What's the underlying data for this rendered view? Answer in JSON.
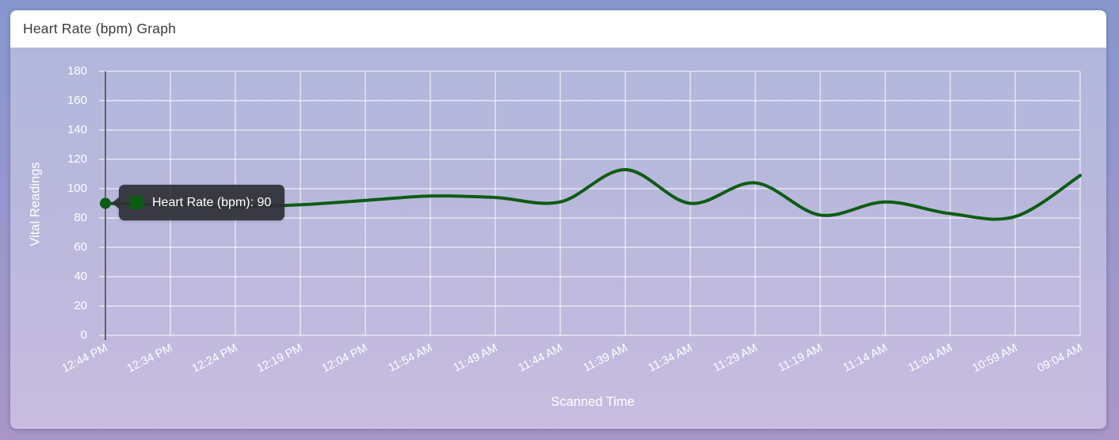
{
  "card": {
    "title": "Heart Rate (bpm) Graph"
  },
  "tooltip": {
    "text": "Heart Rate (bpm): 90"
  },
  "colors": {
    "line": "#0d5c12",
    "point": "#0d5c12",
    "swatch": "#0b5b10",
    "grid": "rgba(255,255,255,0.55)",
    "axis_line": "#636363",
    "tick_text": "#ffffff",
    "page_bg_top": "#8697ce",
    "page_bg_bottom": "#a996c8",
    "chart_bg_top": "#b1b7db",
    "chart_bg_bottom": "#c8bce0",
    "tooltip_bg": "#2f2f37"
  },
  "chart_data": {
    "type": "line",
    "title": "Heart Rate (bpm) Graph",
    "xlabel": "Scanned Time",
    "ylabel": "Vital Readings",
    "ylim": [
      0,
      180
    ],
    "ytick_step": 20,
    "grid": true,
    "legend_position": "none",
    "categories": [
      "12:44 PM",
      "12:34 PM",
      "12:24 PM",
      "12:19 PM",
      "12:04 PM",
      "11:54 AM",
      "11:49 AM",
      "11:44 AM",
      "11:39 AM",
      "11:34 AM",
      "11:29 AM",
      "11:19 AM",
      "11:14 AM",
      "11:04 AM",
      "10:59 AM",
      "09:04 AM"
    ],
    "series": [
      {
        "name": "Heart Rate (bpm)",
        "color": "#0d5c12",
        "values": [
          90,
          89,
          88,
          89,
          92,
          95,
          94,
          91,
          113,
          90,
          104,
          82,
          91,
          83,
          81,
          109
        ]
      }
    ],
    "highlighted_point": {
      "category": "12:44 PM",
      "value": 90,
      "tooltip": "Heart Rate (bpm): 90"
    }
  }
}
